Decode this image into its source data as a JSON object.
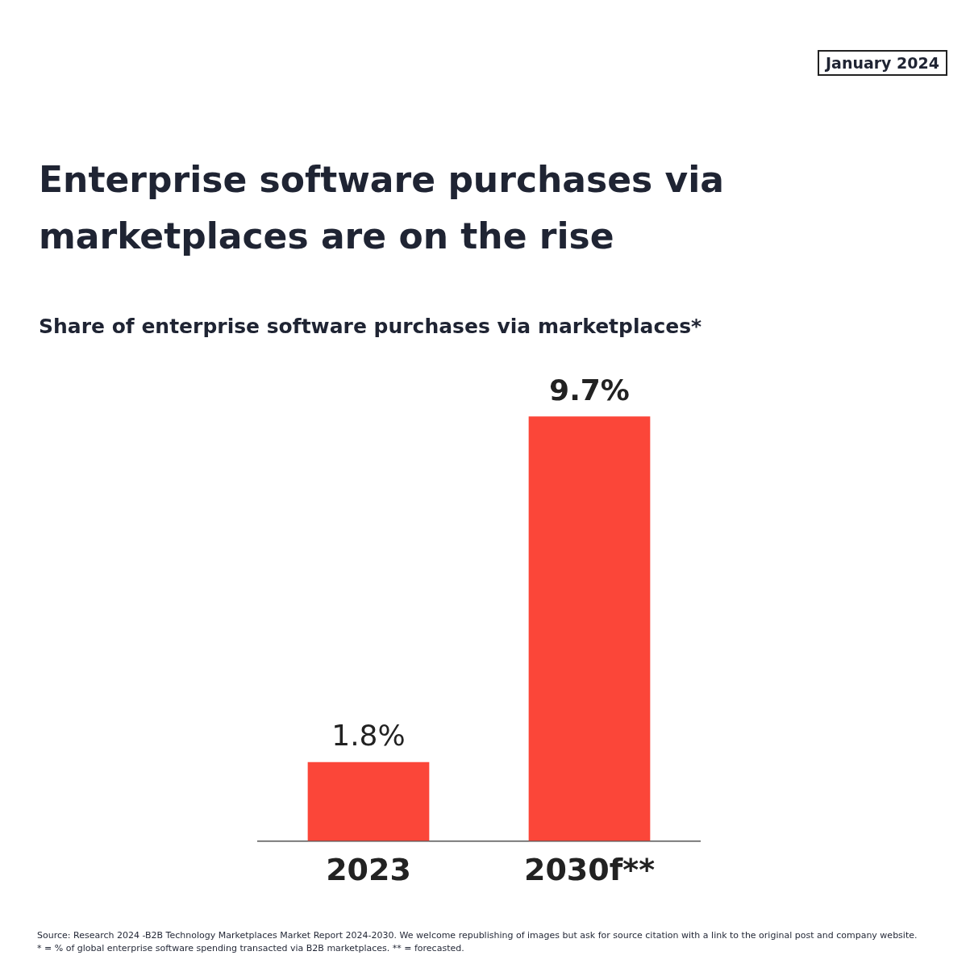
{
  "chart_data": {
    "type": "bar",
    "title": "Enterprise software purchases via marketplaces are on the rise",
    "subtitle": "Share of enterprise software purchases via marketplaces*",
    "categories": [
      "2023",
      "2030f**"
    ],
    "values": [
      1.8,
      9.7
    ],
    "value_labels": [
      "1.8%",
      "9.7%"
    ],
    "color": "#fb4639",
    "legend": false,
    "annotations": [
      "January 2024",
      "Source: Research 2024 -B2B Technology Marketplaces Market Report 2024-2030. We welcome republishing of images but ask for source citation with a link to the original post and company website.",
      "* = % of global enterprise software spending transacted via B2B marketplaces. ** = forecasted."
    ]
  }
}
